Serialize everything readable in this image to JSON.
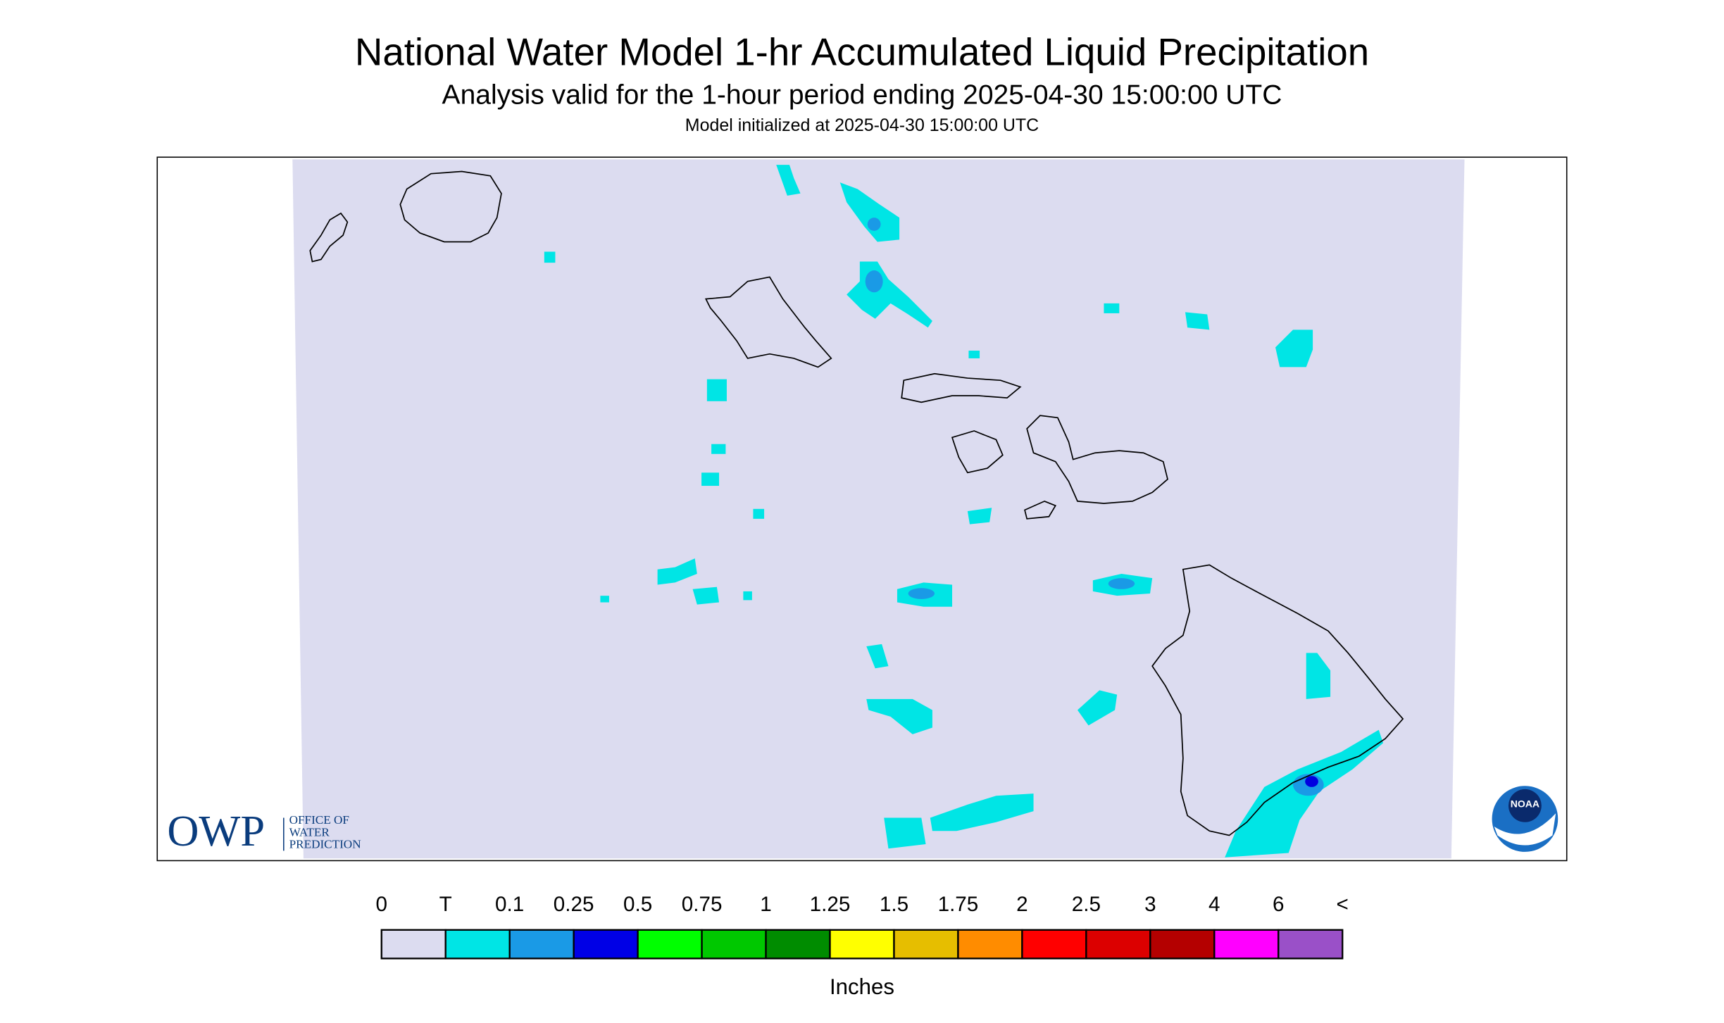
{
  "header": {
    "title": "National Water Model 1-hr Accumulated Liquid Precipitation",
    "subtitle": "Analysis valid for the 1-hour period ending 2025-04-30 15:00:00 UTC",
    "note": "Model initialized at 2025-04-30 15:00:00 UTC"
  },
  "legend": {
    "labels": [
      "0",
      "T",
      "0.1",
      "0.25",
      "0.5",
      "0.75",
      "1",
      "1.25",
      "1.5",
      "1.75",
      "2",
      "2.5",
      "3",
      "4",
      "6",
      "<"
    ],
    "colors": [
      "#dcdcf0",
      "#00e5e5",
      "#1a9ae6",
      "#0000e6",
      "#00ff00",
      "#00c800",
      "#008c00",
      "#ffff00",
      "#e6be00",
      "#ff8c00",
      "#ff0000",
      "#dc0000",
      "#b40000",
      "#ff00ff",
      "#9a50c8"
    ],
    "unit": "Inches"
  },
  "logos": {
    "owp": "OWP",
    "owp_lines": [
      "OFFICE OF",
      "WATER",
      "PREDICTION"
    ],
    "noaa": "NOAA"
  }
}
